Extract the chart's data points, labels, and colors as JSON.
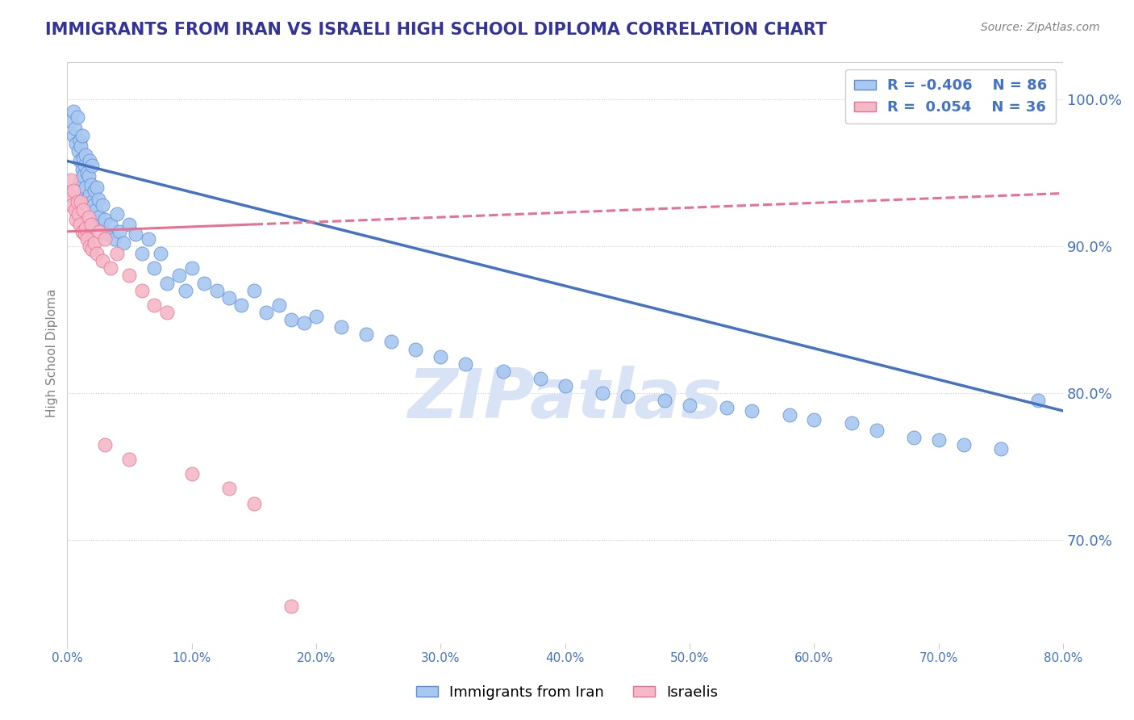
{
  "title": "IMMIGRANTS FROM IRAN VS ISRAELI HIGH SCHOOL DIPLOMA CORRELATION CHART",
  "source": "Source: ZipAtlas.com",
  "legend_blue_label": "Immigrants from Iran",
  "legend_pink_label": "Israelis",
  "blue_R": -0.406,
  "blue_N": 86,
  "pink_R": 0.054,
  "pink_N": 36,
  "xlim": [
    0.0,
    80.0
  ],
  "ylim": [
    63.0,
    102.5
  ],
  "yticks": [
    70.0,
    80.0,
    90.0,
    100.0
  ],
  "xticks": [
    0.0,
    10.0,
    20.0,
    30.0,
    40.0,
    50.0,
    60.0,
    70.0,
    80.0
  ],
  "blue_color": "#A8C8F0",
  "pink_color": "#F5B8C8",
  "blue_edge_color": "#5B8DD9",
  "pink_edge_color": "#E87090",
  "blue_line_color": "#4472C4",
  "pink_line_color": "#E87090",
  "grid_color": "#CCCCCC",
  "title_color": "#333399",
  "axis_label_color": "#4472C4",
  "watermark_color": "#D8E4F5",
  "background_color": "#FFFFFF",
  "blue_line_x0": 0.0,
  "blue_line_y0": 95.8,
  "blue_line_x1": 80.0,
  "blue_line_y1": 78.8,
  "pink_line_x0": 0.0,
  "pink_line_y0": 91.0,
  "pink_line_x1": 80.0,
  "pink_line_y1": 93.6,
  "pink_solid_end": 15.0,
  "blue_points_x": [
    0.3,
    0.5,
    0.5,
    0.6,
    0.7,
    0.8,
    0.9,
    1.0,
    1.0,
    1.1,
    1.1,
    1.2,
    1.2,
    1.3,
    1.3,
    1.4,
    1.4,
    1.5,
    1.5,
    1.6,
    1.6,
    1.7,
    1.8,
    1.8,
    1.9,
    2.0,
    2.0,
    2.1,
    2.2,
    2.3,
    2.4,
    2.5,
    2.6,
    2.7,
    2.8,
    3.0,
    3.2,
    3.5,
    3.8,
    4.0,
    4.2,
    4.5,
    5.0,
    5.5,
    6.0,
    6.5,
    7.0,
    7.5,
    8.0,
    9.0,
    9.5,
    10.0,
    11.0,
    12.0,
    13.0,
    14.0,
    15.0,
    16.0,
    17.0,
    18.0,
    19.0,
    20.0,
    22.0,
    24.0,
    26.0,
    28.0,
    30.0,
    32.0,
    35.0,
    38.0,
    40.0,
    43.0,
    45.0,
    48.0,
    50.0,
    53.0,
    55.0,
    58.0,
    60.0,
    63.0,
    65.0,
    68.0,
    70.0,
    72.0,
    75.0,
    78.0
  ],
  "blue_points_y": [
    98.5,
    99.2,
    97.5,
    98.0,
    97.0,
    98.8,
    96.5,
    97.2,
    95.8,
    96.8,
    94.5,
    97.5,
    95.2,
    96.0,
    94.8,
    95.5,
    93.8,
    96.2,
    94.0,
    95.0,
    93.2,
    94.8,
    95.8,
    93.5,
    94.2,
    93.0,
    95.5,
    92.8,
    93.8,
    92.5,
    94.0,
    93.2,
    92.0,
    91.5,
    92.8,
    91.8,
    90.8,
    91.5,
    90.5,
    92.2,
    91.0,
    90.2,
    91.5,
    90.8,
    89.5,
    90.5,
    88.5,
    89.5,
    87.5,
    88.0,
    87.0,
    88.5,
    87.5,
    87.0,
    86.5,
    86.0,
    87.0,
    85.5,
    86.0,
    85.0,
    84.8,
    85.2,
    84.5,
    84.0,
    83.5,
    83.0,
    82.5,
    82.0,
    81.5,
    81.0,
    80.5,
    80.0,
    79.8,
    79.5,
    79.2,
    79.0,
    78.8,
    78.5,
    78.2,
    78.0,
    77.5,
    77.0,
    76.8,
    76.5,
    76.2,
    79.5
  ],
  "pink_points_x": [
    0.2,
    0.3,
    0.4,
    0.5,
    0.6,
    0.7,
    0.8,
    0.9,
    1.0,
    1.1,
    1.2,
    1.3,
    1.4,
    1.5,
    1.6,
    1.7,
    1.8,
    1.9,
    2.0,
    2.2,
    2.4,
    2.6,
    2.8,
    3.0,
    3.5,
    4.0,
    5.0,
    6.0,
    7.0,
    8.0,
    3.0,
    5.0,
    10.0,
    13.0,
    15.0,
    18.0
  ],
  "pink_points_y": [
    93.5,
    94.5,
    92.8,
    93.8,
    92.5,
    91.8,
    93.0,
    92.2,
    91.5,
    93.0,
    91.0,
    92.5,
    90.8,
    91.2,
    90.5,
    92.0,
    90.0,
    91.5,
    89.8,
    90.2,
    89.5,
    91.0,
    89.0,
    90.5,
    88.5,
    89.5,
    88.0,
    87.0,
    86.0,
    85.5,
    76.5,
    75.5,
    74.5,
    73.5,
    72.5,
    65.5
  ]
}
